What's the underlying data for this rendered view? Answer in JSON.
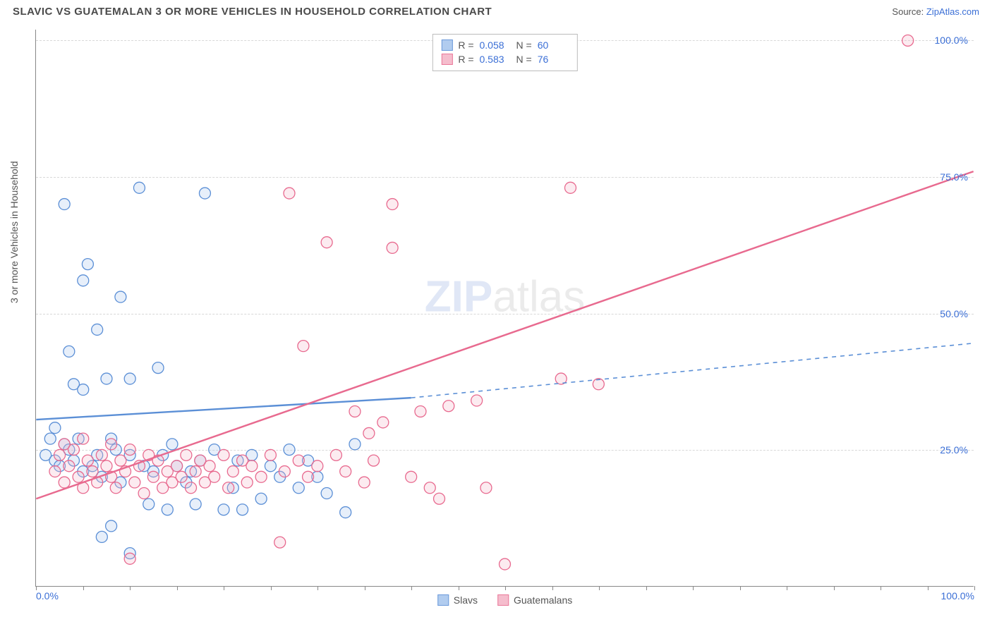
{
  "title": "SLAVIC VS GUATEMALAN 3 OR MORE VEHICLES IN HOUSEHOLD CORRELATION CHART",
  "source_label": "Source:",
  "source_site": "ZipAtlas.com",
  "y_axis_label": "3 or more Vehicles in Household",
  "watermark_a": "ZIP",
  "watermark_b": "atlas",
  "chart": {
    "type": "scatter",
    "xlim": [
      0,
      100
    ],
    "ylim": [
      0,
      102
    ],
    "x_ticks_major": [
      0,
      100
    ],
    "x_ticks_minor": [
      5,
      10,
      15,
      20,
      25,
      30,
      35,
      40,
      45,
      50,
      55,
      60,
      65,
      70,
      75,
      80,
      85,
      90,
      95
    ],
    "y_ticks": [
      25,
      50,
      75,
      100
    ],
    "x_tick_labels": {
      "0": "0.0%",
      "100": "100.0%"
    },
    "y_tick_labels": {
      "25": "25.0%",
      "50": "50.0%",
      "75": "75.0%",
      "100": "100.0%"
    },
    "grid_color": "#d8d8d8",
    "background": "#ffffff",
    "marker_radius": 8,
    "marker_stroke_width": 1.3,
    "marker_fill_opacity": 0.28,
    "series": [
      {
        "name": "Slavs",
        "color_stroke": "#5b8fd6",
        "color_fill": "#a9c7ee",
        "R": "0.058",
        "N": "60",
        "trend": {
          "x1": 0,
          "y1": 30.5,
          "x2_solid": 40,
          "y2_solid": 34.5,
          "x2": 100,
          "y2": 44.5
        },
        "trend_dash_after": 40,
        "points": [
          [
            1,
            24
          ],
          [
            1.5,
            27
          ],
          [
            2,
            23
          ],
          [
            2,
            29
          ],
          [
            2.5,
            22
          ],
          [
            3,
            26
          ],
          [
            3,
            70
          ],
          [
            3.5,
            25
          ],
          [
            3.5,
            43
          ],
          [
            4,
            23
          ],
          [
            4,
            37
          ],
          [
            4.5,
            27
          ],
          [
            5,
            21
          ],
          [
            5,
            36
          ],
          [
            5,
            56
          ],
          [
            5.5,
            59
          ],
          [
            6,
            22
          ],
          [
            6.5,
            24
          ],
          [
            6.5,
            47
          ],
          [
            7,
            9
          ],
          [
            7,
            20
          ],
          [
            7.5,
            38
          ],
          [
            8,
            11
          ],
          [
            8,
            27
          ],
          [
            8.5,
            25
          ],
          [
            9,
            19
          ],
          [
            9,
            53
          ],
          [
            10,
            6
          ],
          [
            10,
            24
          ],
          [
            10,
            38
          ],
          [
            11,
            73
          ],
          [
            11.5,
            22
          ],
          [
            12,
            15
          ],
          [
            12.5,
            21
          ],
          [
            13,
            40
          ],
          [
            13.5,
            24
          ],
          [
            14,
            14
          ],
          [
            14.5,
            26
          ],
          [
            15,
            22
          ],
          [
            16,
            19
          ],
          [
            16.5,
            21
          ],
          [
            17,
            15
          ],
          [
            17.5,
            23
          ],
          [
            18,
            72
          ],
          [
            19,
            25
          ],
          [
            20,
            14
          ],
          [
            21,
            18
          ],
          [
            21.5,
            23
          ],
          [
            22,
            14
          ],
          [
            23,
            24
          ],
          [
            24,
            16
          ],
          [
            25,
            22
          ],
          [
            26,
            20
          ],
          [
            27,
            25
          ],
          [
            28,
            18
          ],
          [
            29,
            23
          ],
          [
            30,
            20
          ],
          [
            31,
            17
          ],
          [
            33,
            13.5
          ],
          [
            34,
            26
          ]
        ]
      },
      {
        "name": "Guatemalans",
        "color_stroke": "#e86a8f",
        "color_fill": "#f5b6c8",
        "R": "0.583",
        "N": "76",
        "trend": {
          "x1": 0,
          "y1": 16,
          "x2_solid": 100,
          "y2_solid": 76,
          "x2": 100,
          "y2": 76
        },
        "trend_dash_after": 100,
        "points": [
          [
            2,
            21
          ],
          [
            2.5,
            24
          ],
          [
            3,
            19
          ],
          [
            3,
            26
          ],
          [
            3.5,
            22
          ],
          [
            4,
            25
          ],
          [
            4.5,
            20
          ],
          [
            5,
            18
          ],
          [
            5,
            27
          ],
          [
            5.5,
            23
          ],
          [
            6,
            21
          ],
          [
            6.5,
            19
          ],
          [
            7,
            24
          ],
          [
            7.5,
            22
          ],
          [
            8,
            20
          ],
          [
            8,
            26
          ],
          [
            8.5,
            18
          ],
          [
            9,
            23
          ],
          [
            9.5,
            21
          ],
          [
            10,
            5
          ],
          [
            10,
            25
          ],
          [
            10.5,
            19
          ],
          [
            11,
            22
          ],
          [
            11.5,
            17
          ],
          [
            12,
            24
          ],
          [
            12.5,
            20
          ],
          [
            13,
            23
          ],
          [
            13.5,
            18
          ],
          [
            14,
            21
          ],
          [
            14.5,
            19
          ],
          [
            15,
            22
          ],
          [
            15.5,
            20
          ],
          [
            16,
            24
          ],
          [
            16.5,
            18
          ],
          [
            17,
            21
          ],
          [
            17.5,
            23
          ],
          [
            18,
            19
          ],
          [
            18.5,
            22
          ],
          [
            19,
            20
          ],
          [
            20,
            24
          ],
          [
            20.5,
            18
          ],
          [
            21,
            21
          ],
          [
            22,
            23
          ],
          [
            22.5,
            19
          ],
          [
            23,
            22
          ],
          [
            24,
            20
          ],
          [
            25,
            24
          ],
          [
            26,
            8
          ],
          [
            26.5,
            21
          ],
          [
            27,
            72
          ],
          [
            28,
            23
          ],
          [
            28.5,
            44
          ],
          [
            29,
            20
          ],
          [
            30,
            22
          ],
          [
            31,
            63
          ],
          [
            32,
            24
          ],
          [
            33,
            21
          ],
          [
            34,
            32
          ],
          [
            35,
            19
          ],
          [
            36,
            23
          ],
          [
            38,
            62
          ],
          [
            38,
            70
          ],
          [
            40,
            20
          ],
          [
            41,
            32
          ],
          [
            42,
            18
          ],
          [
            43,
            16
          ],
          [
            44,
            33
          ],
          [
            47,
            34
          ],
          [
            48,
            18
          ],
          [
            50,
            4
          ],
          [
            56,
            38
          ],
          [
            57,
            73
          ],
          [
            60,
            37
          ],
          [
            93,
            100
          ],
          [
            35.5,
            28
          ],
          [
            37,
            30
          ]
        ]
      }
    ]
  },
  "stat_legend_labels": {
    "R": "R =",
    "N": "N ="
  },
  "bottom_legend": [
    "Slavs",
    "Guatemalans"
  ]
}
